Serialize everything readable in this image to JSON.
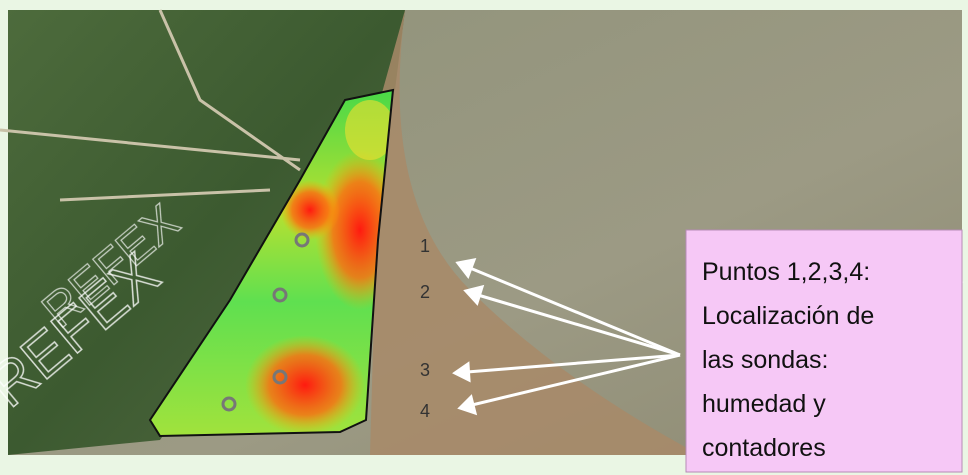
{
  "labels": [
    "1",
    "2",
    "3",
    "4"
  ],
  "callout": {
    "lines": [
      "Puntos 1,2,3,4:",
      "Localización de",
      "las sondas:",
      "humedad y",
      "contadores"
    ]
  },
  "watermark": "REFEX"
}
